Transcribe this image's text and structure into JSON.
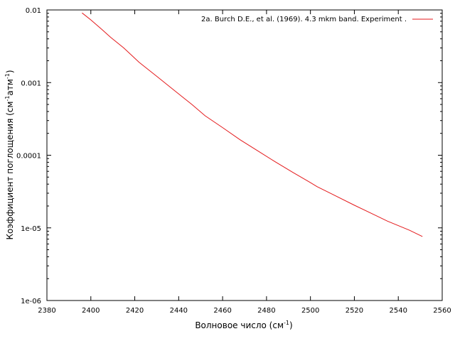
{
  "chart_data": {
    "type": "line",
    "title": "",
    "xlabel": "Волновое число (см",
    "xlabel_sup": "-1",
    "xlabel_end": ")",
    "ylabel": "Коэффициент поглощения (см",
    "ylabel_sup1": "-1",
    "ylabel_mid": "атм",
    "ylabel_sup2": "-1",
    "ylabel_end": ")",
    "xlim": [
      2380,
      2560
    ],
    "ylim": [
      1e-06,
      0.01
    ],
    "yscale": "log",
    "grid": false,
    "legend_position": "top-right",
    "x_ticks": [
      "2380",
      "2400",
      "2420",
      "2440",
      "2460",
      "2480",
      "2500",
      "2520",
      "2540",
      "2560"
    ],
    "y_ticks": [
      "1e-06",
      "1e-05",
      "0.0001",
      "0.001",
      "0.01"
    ],
    "series": [
      {
        "name": "2a. Burch D.E., et al. (1969). 4.3 mkm band. Experiment .",
        "color": "#e41a1c",
        "x": [
          2396,
          2400,
          2405,
          2409,
          2415,
          2422,
          2430,
          2438,
          2446,
          2452,
          2460,
          2468,
          2476,
          2484,
          2492,
          2500,
          2503,
          2510,
          2520,
          2530,
          2535,
          2545,
          2551
        ],
        "y": [
          0.0091,
          0.0073,
          0.0054,
          0.0042,
          0.003,
          0.0019,
          0.00122,
          0.00078,
          0.0005,
          0.00035,
          0.00024,
          0.000163,
          0.000115,
          8.1e-05,
          5.8e-05,
          4.2e-05,
          3.7e-05,
          2.9e-05,
          2.05e-05,
          1.47e-05,
          1.24e-05,
          9.3e-06,
          7.6e-06
        ]
      }
    ]
  }
}
